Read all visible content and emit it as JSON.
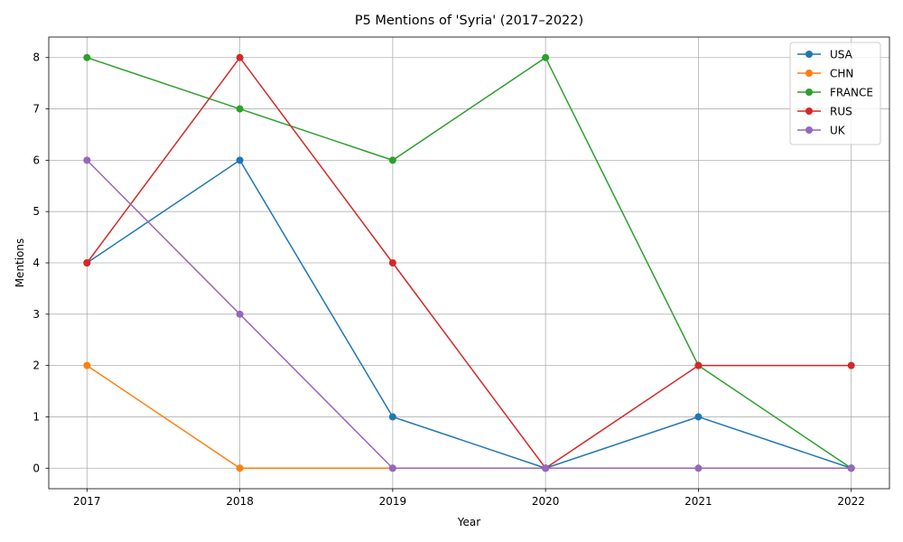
{
  "chart_data": {
    "type": "line",
    "title": "P5 Mentions of 'Syria' (2017–2022)",
    "xlabel": "Year",
    "ylabel": "Mentions",
    "x": [
      2017,
      2018,
      2019,
      2020,
      2021,
      2022
    ],
    "x_tick_labels": [
      "2017",
      "2018",
      "2019",
      "2020",
      "2021",
      "2022"
    ],
    "y_ticks": [
      0,
      1,
      2,
      3,
      4,
      5,
      6,
      7,
      8
    ],
    "y_tick_labels": [
      "0",
      "1",
      "2",
      "3",
      "4",
      "5",
      "6",
      "7",
      "8"
    ],
    "ylim": [
      -0.4,
      8.4
    ],
    "xlim": [
      2016.75,
      2022.25
    ],
    "grid": true,
    "legend_position": "top-right",
    "series": [
      {
        "name": "USA",
        "color": "#1f77b4",
        "values": [
          4,
          6,
          1,
          0,
          1,
          0
        ]
      },
      {
        "name": "CHN",
        "color": "#ff7f0e",
        "values": [
          2,
          0,
          0,
          null,
          null,
          null
        ]
      },
      {
        "name": "FRANCE",
        "color": "#2ca02c",
        "values": [
          8,
          7,
          6,
          8,
          2,
          0
        ]
      },
      {
        "name": "RUS",
        "color": "#d62728",
        "values": [
          4,
          8,
          4,
          0,
          2,
          2
        ]
      },
      {
        "name": "UK",
        "color": "#9467bd",
        "values": [
          6,
          3,
          0,
          0,
          0,
          0
        ]
      }
    ]
  }
}
